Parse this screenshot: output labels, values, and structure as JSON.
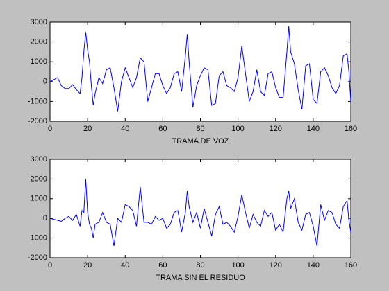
{
  "chart_data": [
    {
      "type": "line",
      "xlabel": "TRAMA DE VOZ",
      "x": [
        0,
        2,
        4,
        6,
        8,
        10,
        12,
        14,
        16,
        17,
        18,
        19,
        20,
        21,
        22,
        23,
        24,
        26,
        28,
        30,
        32,
        34,
        36,
        38,
        40,
        42,
        44,
        46,
        48,
        50,
        52,
        54,
        56,
        58,
        60,
        62,
        64,
        66,
        68,
        70,
        72,
        73,
        74,
        76,
        78,
        80,
        82,
        84,
        86,
        88,
        90,
        92,
        94,
        96,
        98,
        100,
        102,
        104,
        106,
        108,
        110,
        112,
        114,
        116,
        118,
        120,
        122,
        124,
        126,
        127,
        128,
        130,
        132,
        134,
        136,
        138,
        140,
        142,
        144,
        146,
        148,
        150,
        152,
        154,
        156,
        158,
        159,
        160
      ],
      "series": [
        {
          "color": "#0000ff",
          "values": [
            0,
            100,
            200,
            -200,
            -350,
            -350,
            -150,
            -400,
            -600,
            200,
            1500,
            2500,
            1600,
            1000,
            -200,
            -1200,
            -600,
            200,
            -100,
            600,
            700,
            -300,
            -1500,
            0,
            700,
            200,
            -300,
            200,
            1200,
            1000,
            -1000,
            -300,
            400,
            400,
            -200,
            -600,
            -300,
            400,
            500,
            -500,
            1300,
            2400,
            1000,
            -1300,
            -200,
            300,
            700,
            600,
            -1200,
            -1100,
            300,
            500,
            -200,
            -300,
            -500,
            200,
            1800,
            400,
            -1000,
            -500,
            600,
            -500,
            -700,
            400,
            500,
            -300,
            -800,
            -800,
            1500,
            2800,
            1500,
            900,
            -400,
            -1400,
            800,
            900,
            -900,
            -1100,
            500,
            700,
            300,
            -300,
            -600,
            -200,
            1300,
            1400,
            500,
            -1000
          ]
        }
      ],
      "xlim": [
        0,
        160
      ],
      "xticks": [
        0,
        20,
        40,
        60,
        80,
        100,
        120,
        140,
        160
      ],
      "ylim": [
        -2000,
        3000
      ],
      "yticks": [
        -2000,
        -1000,
        0,
        1000,
        2000,
        3000
      ]
    },
    {
      "type": "line",
      "xlabel": "TRAMA SIN EL RESIDUO",
      "x": [
        0,
        2,
        4,
        6,
        8,
        10,
        12,
        14,
        16,
        17,
        18,
        19,
        20,
        21,
        22,
        23,
        24,
        26,
        28,
        30,
        32,
        34,
        36,
        38,
        40,
        42,
        44,
        46,
        48,
        50,
        52,
        54,
        56,
        58,
        60,
        62,
        64,
        66,
        68,
        70,
        72,
        73,
        74,
        76,
        78,
        80,
        82,
        84,
        86,
        88,
        90,
        92,
        94,
        96,
        98,
        100,
        102,
        104,
        106,
        108,
        110,
        112,
        114,
        116,
        118,
        120,
        122,
        124,
        126,
        127,
        128,
        130,
        132,
        134,
        136,
        138,
        140,
        142,
        144,
        146,
        148,
        150,
        152,
        154,
        156,
        158,
        159,
        160
      ],
      "series": [
        {
          "color": "#0000ff",
          "values": [
            0,
            -50,
            -100,
            -150,
            0,
            100,
            -100,
            200,
            -400,
            400,
            300,
            2000,
            300,
            -300,
            -500,
            -1000,
            -300,
            -200,
            300,
            -200,
            -300,
            -1400,
            0,
            -200,
            700,
            600,
            400,
            -400,
            1600,
            -200,
            -200,
            -300,
            100,
            -100,
            0,
            -500,
            -300,
            300,
            400,
            -700,
            300,
            1400,
            600,
            -200,
            300,
            -500,
            500,
            -200,
            -900,
            200,
            600,
            -300,
            -200,
            -400,
            -700,
            100,
            1200,
            300,
            -500,
            200,
            -200,
            -400,
            400,
            100,
            300,
            -600,
            -300,
            -700,
            1000,
            1400,
            500,
            1000,
            -200,
            -600,
            200,
            300,
            -400,
            -1400,
            700,
            -100,
            400,
            300,
            -300,
            -500,
            600,
            900,
            -100,
            -700
          ]
        }
      ],
      "xlim": [
        0,
        160
      ],
      "xticks": [
        0,
        20,
        40,
        60,
        80,
        100,
        120,
        140,
        160
      ],
      "ylim": [
        -2000,
        3000
      ],
      "yticks": [
        -2000,
        -1000,
        0,
        1000,
        2000,
        3000
      ]
    }
  ]
}
